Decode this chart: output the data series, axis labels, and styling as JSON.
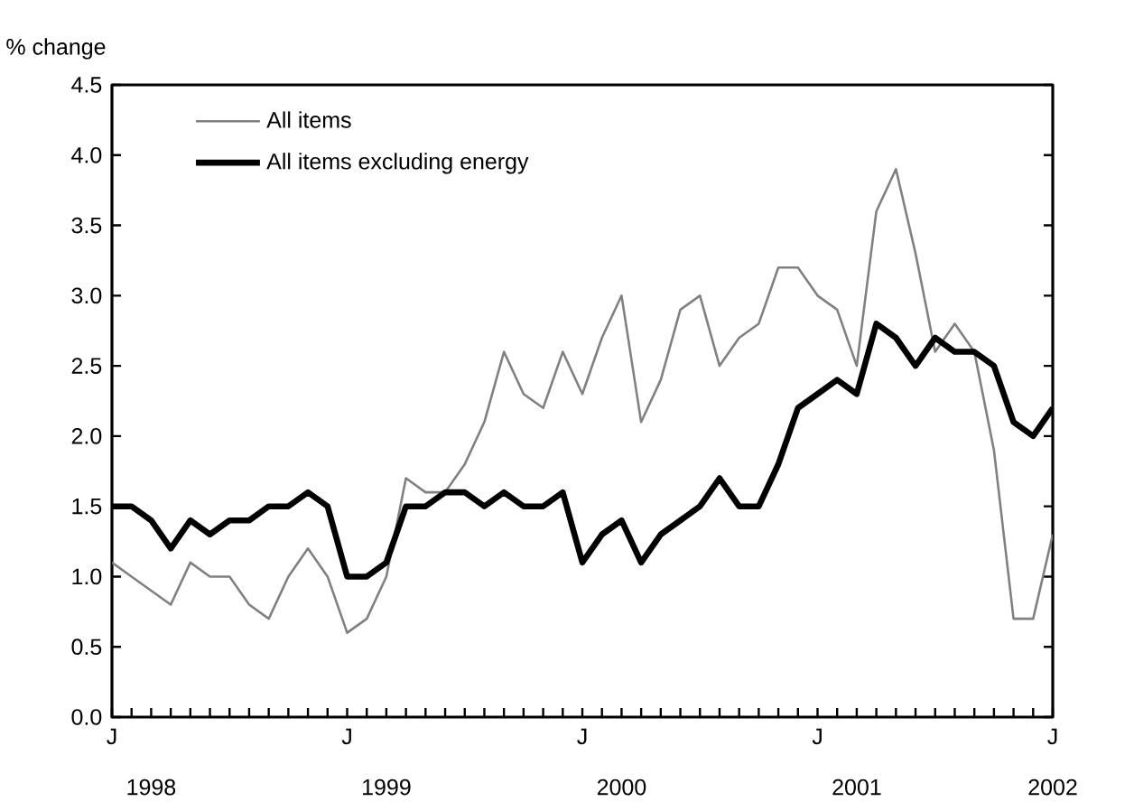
{
  "chart_data": {
    "type": "line",
    "ylabel": "% change",
    "categories": [
      "J",
      null,
      null,
      null,
      null,
      null,
      null,
      null,
      null,
      null,
      null,
      null,
      "J",
      null,
      null,
      null,
      null,
      null,
      null,
      null,
      null,
      null,
      null,
      null,
      "J",
      null,
      null,
      null,
      null,
      null,
      null,
      null,
      null,
      null,
      null,
      null,
      "J",
      null,
      null,
      null,
      null,
      null,
      null,
      null,
      null,
      null,
      null,
      null,
      "J"
    ],
    "series": [
      {
        "name": "All items",
        "color": "#808080",
        "values": [
          1.1,
          1.0,
          0.9,
          0.8,
          1.1,
          1.0,
          1.0,
          0.8,
          0.7,
          1.0,
          1.2,
          1.0,
          0.6,
          0.7,
          1.0,
          1.7,
          1.6,
          1.6,
          1.8,
          2.1,
          2.6,
          2.3,
          2.2,
          2.6,
          2.3,
          2.7,
          3.0,
          2.1,
          2.4,
          2.9,
          3.0,
          2.5,
          2.7,
          2.8,
          3.2,
          3.2,
          3.0,
          2.9,
          2.5,
          3.6,
          3.9,
          3.3,
          2.6,
          2.8,
          2.6,
          1.9,
          0.7,
          0.7,
          1.3
        ]
      },
      {
        "name": "All items excluding energy",
        "color": "#000000",
        "values": [
          1.5,
          1.5,
          1.4,
          1.2,
          1.4,
          1.3,
          1.4,
          1.4,
          1.5,
          1.5,
          1.6,
          1.5,
          1.0,
          1.0,
          1.1,
          1.5,
          1.5,
          1.6,
          1.6,
          1.5,
          1.6,
          1.5,
          1.5,
          1.6,
          1.1,
          1.3,
          1.4,
          1.1,
          1.3,
          1.4,
          1.5,
          1.7,
          1.5,
          1.5,
          1.8,
          2.2,
          2.3,
          2.4,
          2.3,
          2.8,
          2.7,
          2.5,
          2.7,
          2.6,
          2.6,
          2.5,
          2.1,
          2.0,
          2.2
        ]
      }
    ],
    "x2lim": [
      "1998-01",
      "2002-01"
    ],
    "x2ticks": [
      {
        "value": "1998-03",
        "label": "1998"
      },
      {
        "value": "1999-03",
        "label": "1999"
      },
      {
        "value": "2000-03",
        "label": "2000"
      },
      {
        "value": "2001-03",
        "label": "2001"
      },
      {
        "value": "2002-01",
        "label": "2002"
      }
    ],
    "ylim": [
      0,
      4.5
    ],
    "yticks": [
      {
        "value": 0,
        "label": "0.0"
      },
      0.5,
      {
        "value": 1,
        "label": "1.0"
      },
      1.5,
      {
        "value": 2,
        "label": "2.0"
      },
      2.5,
      {
        "value": 3,
        "label": "3.0"
      },
      3.5,
      {
        "value": 4,
        "label": "4.0"
      },
      4.5
    ],
    "grid": false,
    "legend": "top left",
    "marker": "none",
    "line_style": "solid"
  }
}
